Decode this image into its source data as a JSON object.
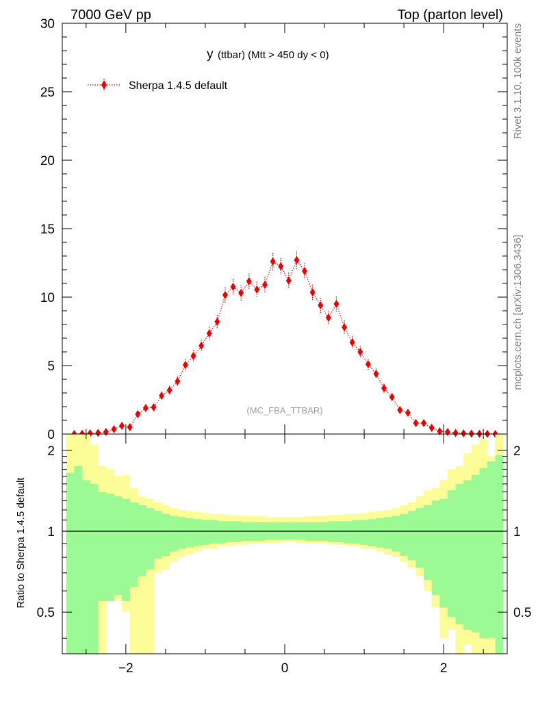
{
  "header": {
    "left": "7000 GeV pp",
    "right": "Top (parton level)"
  },
  "side_labels": {
    "rivet": "Rivet 3.1.10,  100k events",
    "mcplots": "mcplots.cern.ch [arXiv:1306.3436]"
  },
  "plot_title": {
    "main": "y",
    "sub": "(ttbar) (Mtt > 450 dy < 0)"
  },
  "watermark": "(MC_FBA_TTBAR)",
  "colors": {
    "series": "#ee0000",
    "band_inner": "#9cfa94",
    "band_outer": "#fdfd98",
    "axis": "#000000",
    "side_text": "#808080",
    "watermark": "#a0a0a0"
  },
  "chart_data": [
    {
      "type": "scatter",
      "xlim": [
        -2.8,
        2.8
      ],
      "ylim": [
        0,
        30
      ],
      "yticks": [
        0,
        5,
        10,
        15,
        20,
        25,
        30
      ],
      "ytick_labels": [
        "0",
        "5",
        "10",
        "15",
        "20",
        "25",
        "30"
      ],
      "legend": {
        "placement": "top-left"
      },
      "series": [
        {
          "name": "Sherpa 1.4.5 default",
          "marker": "diamond",
          "line": "dotted",
          "x": [
            -2.65,
            -2.55,
            -2.45,
            -2.35,
            -2.25,
            -2.15,
            -2.05,
            -1.95,
            -1.85,
            -1.75,
            -1.65,
            -1.55,
            -1.45,
            -1.35,
            -1.25,
            -1.15,
            -1.05,
            -0.95,
            -0.85,
            -0.75,
            -0.65,
            -0.55,
            -0.45,
            -0.35,
            -0.25,
            -0.15,
            -0.05,
            0.05,
            0.15,
            0.25,
            0.35,
            0.45,
            0.55,
            0.65,
            0.75,
            0.85,
            0.95,
            1.05,
            1.15,
            1.25,
            1.35,
            1.45,
            1.55,
            1.65,
            1.75,
            1.85,
            1.95,
            2.05,
            2.15,
            2.25,
            2.35,
            2.45,
            2.55,
            2.65
          ],
          "y": [
            0.0,
            0.02,
            0.05,
            0.08,
            0.15,
            0.35,
            0.6,
            0.5,
            1.45,
            1.9,
            1.95,
            2.8,
            3.2,
            3.85,
            5.05,
            5.7,
            6.45,
            7.35,
            8.2,
            10.15,
            10.75,
            10.3,
            11.15,
            10.55,
            10.9,
            12.6,
            12.25,
            11.2,
            12.7,
            11.9,
            10.35,
            9.4,
            8.5,
            9.5,
            7.8,
            6.7,
            6.0,
            5.1,
            4.4,
            3.35,
            2.7,
            1.75,
            1.55,
            0.8,
            0.8,
            0.45,
            0.2,
            0.15,
            0.08,
            0.05,
            0.03,
            0.02,
            0.01,
            0.0
          ],
          "yerr": [
            0.02,
            0.03,
            0.04,
            0.06,
            0.08,
            0.12,
            0.15,
            0.14,
            0.22,
            0.25,
            0.25,
            0.3,
            0.32,
            0.35,
            0.4,
            0.42,
            0.45,
            0.48,
            0.5,
            0.56,
            0.58,
            0.57,
            0.59,
            0.58,
            0.59,
            0.63,
            0.62,
            0.59,
            0.63,
            0.61,
            0.57,
            0.55,
            0.52,
            0.55,
            0.5,
            0.46,
            0.44,
            0.4,
            0.37,
            0.33,
            0.29,
            0.23,
            0.22,
            0.16,
            0.16,
            0.12,
            0.08,
            0.07,
            0.05,
            0.04,
            0.03,
            0.03,
            0.02,
            0.02
          ]
        }
      ]
    },
    {
      "type": "area",
      "xlim": [
        -2.8,
        2.8
      ],
      "ylim": [
        0.35,
        2.3
      ],
      "yscale": "log",
      "xticks": [
        -2,
        0,
        2
      ],
      "xtick_labels": [
        "−2",
        "0",
        "2"
      ],
      "yticks": [
        0.5,
        1,
        2
      ],
      "ytick_labels": [
        "0.5",
        "1",
        "2"
      ],
      "ylabel": "Ratio to Sherpa 1.4.5 default",
      "reference_line": 1,
      "bins_edges": [
        -2.75,
        -2.65,
        -2.55,
        -2.45,
        -2.35,
        -2.25,
        -2.15,
        -2.05,
        -1.95,
        -1.85,
        -1.75,
        -1.65,
        -1.55,
        -1.45,
        -1.35,
        -1.25,
        -1.15,
        -1.05,
        -0.95,
        -0.85,
        -0.75,
        -0.65,
        -0.55,
        -0.45,
        -0.35,
        -0.25,
        -0.15,
        -0.05,
        0.05,
        0.15,
        0.25,
        0.35,
        0.45,
        0.55,
        0.65,
        0.75,
        0.85,
        0.95,
        1.05,
        1.15,
        1.25,
        1.35,
        1.45,
        1.55,
        1.65,
        1.75,
        1.85,
        1.95,
        2.05,
        2.15,
        2.25,
        2.35,
        2.45,
        2.55,
        2.65,
        2.75
      ],
      "series": [
        {
          "band": "outer",
          "upper": [
            2.3,
            2.3,
            2.3,
            2.1,
            1.75,
            1.7,
            1.6,
            1.62,
            1.45,
            1.35,
            1.32,
            1.28,
            1.25,
            1.22,
            1.2,
            1.19,
            1.18,
            1.17,
            1.16,
            1.16,
            1.15,
            1.15,
            1.14,
            1.14,
            1.14,
            1.13,
            1.13,
            1.13,
            1.13,
            1.13,
            1.14,
            1.14,
            1.14,
            1.15,
            1.15,
            1.16,
            1.16,
            1.17,
            1.18,
            1.19,
            1.2,
            1.22,
            1.25,
            1.28,
            1.35,
            1.42,
            1.45,
            1.55,
            1.7,
            1.75,
            1.95,
            2.1,
            2.2,
            1.9,
            2.3
          ],
          "lower": [
            0.3,
            0.3,
            0.3,
            0.3,
            0.3,
            0.6,
            0.55,
            0.5,
            0.3,
            0.3,
            0.3,
            0.7,
            0.72,
            0.77,
            0.8,
            0.82,
            0.84,
            0.86,
            0.86,
            0.88,
            0.88,
            0.89,
            0.89,
            0.9,
            0.9,
            0.9,
            0.9,
            0.91,
            0.91,
            0.9,
            0.9,
            0.9,
            0.9,
            0.89,
            0.89,
            0.88,
            0.88,
            0.86,
            0.86,
            0.84,
            0.82,
            0.8,
            0.77,
            0.73,
            0.68,
            0.6,
            0.52,
            0.4,
            0.43,
            0.3,
            0.38,
            0.3,
            0.3,
            0.3,
            0.3
          ]
        },
        {
          "band": "inner",
          "upper": [
            1.65,
            1.75,
            1.55,
            1.5,
            1.4,
            1.38,
            1.35,
            1.32,
            1.28,
            1.25,
            1.22,
            1.19,
            1.16,
            1.14,
            1.13,
            1.12,
            1.11,
            1.1,
            1.1,
            1.09,
            1.09,
            1.09,
            1.08,
            1.08,
            1.08,
            1.08,
            1.08,
            1.08,
            1.08,
            1.08,
            1.08,
            1.08,
            1.08,
            1.09,
            1.09,
            1.09,
            1.1,
            1.1,
            1.11,
            1.12,
            1.13,
            1.14,
            1.16,
            1.19,
            1.22,
            1.25,
            1.3,
            1.32,
            1.42,
            1.5,
            1.55,
            1.62,
            1.72,
            1.82,
            1.92
          ],
          "lower": [
            0.3,
            0.3,
            0.3,
            0.3,
            0.55,
            0.55,
            0.58,
            0.55,
            0.62,
            0.68,
            0.72,
            0.79,
            0.81,
            0.84,
            0.86,
            0.87,
            0.88,
            0.89,
            0.9,
            0.9,
            0.91,
            0.91,
            0.92,
            0.92,
            0.92,
            0.93,
            0.93,
            0.93,
            0.93,
            0.93,
            0.92,
            0.92,
            0.92,
            0.91,
            0.91,
            0.9,
            0.9,
            0.89,
            0.88,
            0.87,
            0.86,
            0.84,
            0.81,
            0.78,
            0.73,
            0.66,
            0.58,
            0.52,
            0.48,
            0.45,
            0.43,
            0.42,
            0.4,
            0.4,
            0.3
          ]
        }
      ]
    }
  ]
}
